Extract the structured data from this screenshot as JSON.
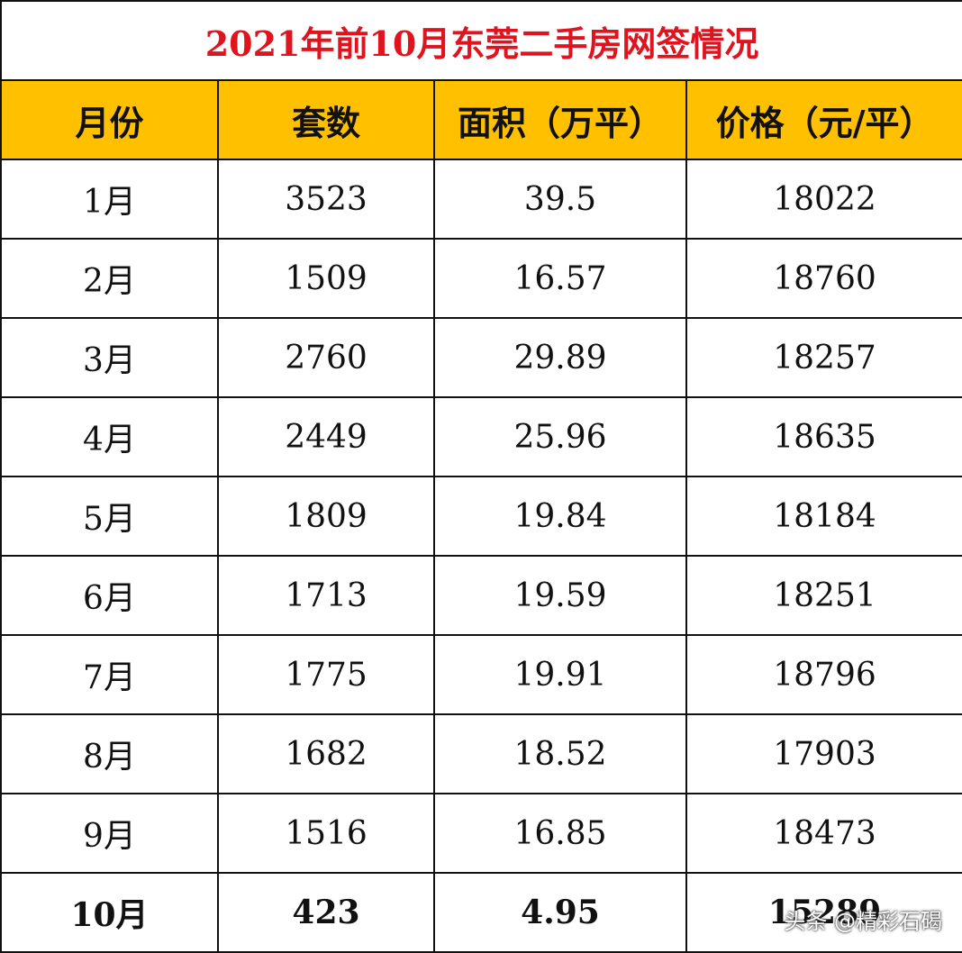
{
  "title": "2021年前10月东莞二手房网签情况",
  "table": {
    "header": [
      "月份",
      "套数",
      "面积（万平）",
      "价格（元/平）"
    ],
    "rows": [
      [
        "1月",
        "3523",
        "39.5",
        "18022"
      ],
      [
        "2月",
        "1509",
        "16.57",
        "18760"
      ],
      [
        "3月",
        "2760",
        "29.89",
        "18257"
      ],
      [
        "4月",
        "2449",
        "25.96",
        "18635"
      ],
      [
        "5月",
        "1809",
        "19.84",
        "18184"
      ],
      [
        "6月",
        "1713",
        "19.59",
        "18251"
      ],
      [
        "7月",
        "1775",
        "19.91",
        "18796"
      ],
      [
        "8月",
        "1682",
        "18.52",
        "17903"
      ],
      [
        "9月",
        "1516",
        "16.85",
        "18473"
      ],
      [
        "10月",
        "423",
        "4.95",
        "15289"
      ]
    ]
  },
  "watermark": "头条 @精彩石碣"
}
